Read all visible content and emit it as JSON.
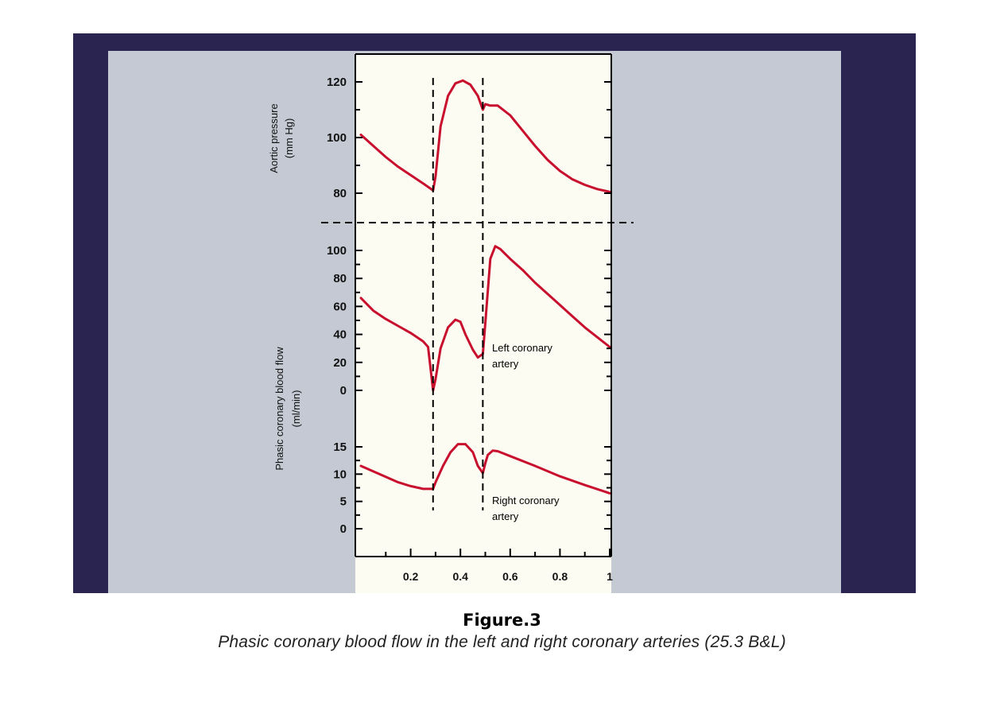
{
  "colors": {
    "frame": "#2a2550",
    "panel": "#c4c9d3",
    "plot_background": "#fdfcf2",
    "curve": "#c8102e",
    "axis": "#000000"
  },
  "caption": {
    "number": "Figure.3",
    "text": "Phasic coronary blood flow in the left and right coronary arteries (25.3 B&L)"
  },
  "chart_data": {
    "type": "line",
    "x_ticks": [
      "0.2",
      "0.4",
      "0.6",
      "0.8",
      "1"
    ],
    "xlim": [
      0,
      1
    ],
    "grid": false,
    "vertical_dashed_lines_x": [
      0.29,
      0.49
    ],
    "panels": [
      {
        "id": "aortic",
        "ylabel_line1": "Aortic pressure",
        "ylabel_line2": "(mm Hg)",
        "y_ticks": [
          "120",
          "100",
          "80"
        ],
        "ylim": [
          70,
          130
        ],
        "series": [
          {
            "label": "",
            "x": [
              0.0,
              0.05,
              0.1,
              0.15,
              0.2,
              0.25,
              0.29,
              0.3,
              0.32,
              0.35,
              0.38,
              0.41,
              0.44,
              0.47,
              0.49,
              0.5,
              0.52,
              0.55,
              0.6,
              0.65,
              0.7,
              0.75,
              0.8,
              0.85,
              0.9,
              0.95,
              1.0
            ],
            "y": [
              101,
              97,
              93,
              89.5,
              86.5,
              83.5,
              81,
              86,
              104,
              115,
              119.5,
              120.5,
              119,
              115,
              110,
              112,
              111.5,
              111.5,
              108,
              102.5,
              97,
              92,
              88,
              85,
              83,
              81.5,
              80.5
            ]
          }
        ]
      },
      {
        "id": "left",
        "ylabel_line1": "Phasic coronary blood flow",
        "ylabel_line2": "(ml/min)",
        "y_ticks": [
          "100",
          "80",
          "60",
          "40",
          "20",
          "0"
        ],
        "ylim": [
          -5,
          108
        ],
        "series": [
          {
            "label": "Left coronary artery",
            "label_lines": [
              "Left coronary",
              "artery"
            ],
            "x": [
              0.0,
              0.05,
              0.1,
              0.15,
              0.2,
              0.25,
              0.27,
              0.29,
              0.3,
              0.32,
              0.35,
              0.38,
              0.4,
              0.42,
              0.45,
              0.47,
              0.49,
              0.5,
              0.52,
              0.54,
              0.56,
              0.6,
              0.65,
              0.7,
              0.75,
              0.8,
              0.85,
              0.9,
              0.95,
              1.0
            ],
            "y": [
              66,
              57,
              51,
              46,
              41,
              35,
              31,
              0,
              8,
              30,
              45,
              50.5,
              49,
              40,
              29,
              23.5,
              26,
              48,
              94,
              103,
              101,
              94,
              86,
              77,
              69,
              61,
              53,
              45,
              38,
              31
            ]
          }
        ]
      },
      {
        "id": "right",
        "y_ticks": [
          "15",
          "10",
          "5",
          "0"
        ],
        "ylim": [
          -2,
          18
        ],
        "series": [
          {
            "label": "Right coronary artery",
            "label_lines": [
              "Right coronary",
              "artery"
            ],
            "x": [
              0.0,
              0.05,
              0.1,
              0.15,
              0.2,
              0.25,
              0.29,
              0.3,
              0.33,
              0.36,
              0.39,
              0.42,
              0.45,
              0.47,
              0.49,
              0.5,
              0.51,
              0.53,
              0.55,
              0.6,
              0.7,
              0.8,
              0.9,
              1.0
            ],
            "y": [
              11.5,
              10.5,
              9.5,
              8.5,
              7.8,
              7.3,
              7.3,
              8.5,
              11.5,
              14,
              15.5,
              15.5,
              14,
              11.5,
              10.2,
              12,
              13.5,
              14.3,
              14.2,
              13.3,
              11.5,
              9.6,
              8,
              6.5
            ]
          }
        ]
      }
    ]
  }
}
